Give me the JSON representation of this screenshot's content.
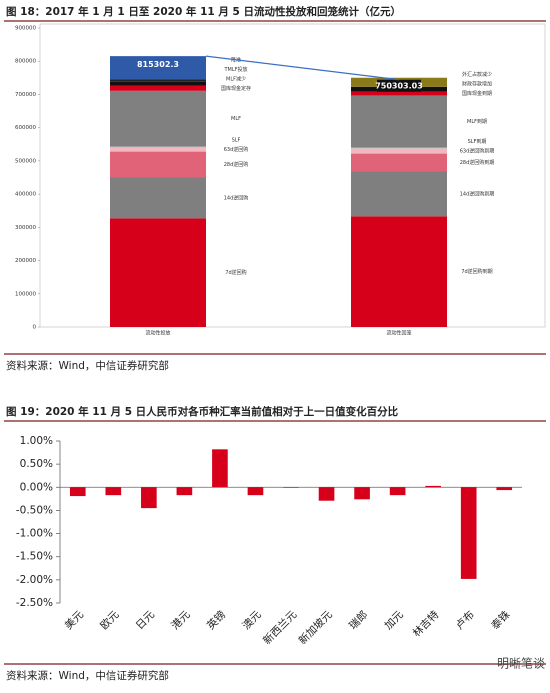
{
  "chart_data": [
    {
      "type": "stacked-bar",
      "title": "图 18：2017 年 1 月 1 日至 2020 年 11 月 5 日流动性投放和回笼统计（亿元）",
      "source": "资料来源：Wind，中信证券研究部",
      "ylim": [
        0,
        900000
      ],
      "yticks": [
        0,
        100000,
        200000,
        300000,
        400000,
        500000,
        600000,
        700000,
        800000,
        900000
      ],
      "stacks": [
        {
          "category": "流动性投放",
          "total": 815302.3,
          "total_color": "#2e5aa8",
          "segments": [
            {
              "name": "7d逆回购",
              "color": "#d7001a",
              "value": 327000
            },
            {
              "name": "14d逆回购",
              "color": "#7f7f7f",
              "value": 123000
            },
            {
              "name": "28d逆回购",
              "color": "#e06377",
              "value": 78000
            },
            {
              "name": "63d逆回购",
              "color": "#f2b8c0",
              "value": 12000
            },
            {
              "name": "SLF",
              "color": "#bfbfbf",
              "value": 3000
            },
            {
              "name": "MLF",
              "color": "#808080",
              "value": 168000
            },
            {
              "name": "国库现金定存",
              "color": "#d7001a",
              "value": 15000
            },
            {
              "name": "MLF减少",
              "color": "#111111",
              "value": 12000
            },
            {
              "name": "TMLF投放",
              "color": "#222222",
              "value": 8000
            },
            {
              "name": "降准",
              "color": "#2e5aa8",
              "value": 69302.3
            }
          ]
        },
        {
          "category": "流动性回笼",
          "total": 750303.03,
          "total_color": "#111111",
          "segments": [
            {
              "name": "7d逆回购到期",
              "color": "#d7001a",
              "value": 333000
            },
            {
              "name": "14d逆回购到期",
              "color": "#7f7f7f",
              "value": 135000
            },
            {
              "name": "28d逆回购到期",
              "color": "#e06377",
              "value": 54000
            },
            {
              "name": "63d逆回购到期",
              "color": "#f2b8c0",
              "value": 15000
            },
            {
              "name": "SLF到期",
              "color": "#bfbfbf",
              "value": 3000
            },
            {
              "name": "MLF到期",
              "color": "#808080",
              "value": 157000
            },
            {
              "name": "国库现金到期",
              "color": "#d7001a",
              "value": 12000
            },
            {
              "name": "财政存款增加",
              "color": "#111111",
              "value": 14000
            },
            {
              "name": "外汇占款减少",
              "color": "#8b7a1a",
              "value": 27303.03
            }
          ]
        }
      ]
    },
    {
      "type": "bar",
      "title": "图 19：2020 年 11 月 5 日人民币对各币种汇率当前值相对于上一日值变化百分比",
      "source": "资料来源：Wind，中信证券研究部",
      "watermark": "明晰笔谈",
      "color": "#d7001a",
      "categories": [
        "美元",
        "欧元",
        "日元",
        "港元",
        "英镑",
        "澳元",
        "新西兰元",
        "新加坡元",
        "瑞郎",
        "加元",
        "林吉特",
        "卢布",
        "泰铢"
      ],
      "values": [
        -0.19,
        -0.17,
        -0.45,
        -0.17,
        0.82,
        -0.17,
        -0.01,
        -0.29,
        -0.26,
        -0.17,
        0.03,
        -1.98,
        -0.06
      ],
      "ylim": [
        -2.5,
        1
      ],
      "yticks": [
        {
          "value": -2.5,
          "label": "-2.50%"
        },
        {
          "value": -2,
          "label": "-2.00%"
        },
        {
          "value": -1.5,
          "label": "-1.50%"
        },
        {
          "value": -1,
          "label": "-1.00%"
        },
        {
          "value": -0.5,
          "label": "-0.50%"
        },
        {
          "value": 0,
          "label": "0.00%"
        },
        {
          "value": 0.5,
          "label": "0.50%"
        },
        {
          "value": 1,
          "label": "1.00%"
        }
      ]
    }
  ]
}
